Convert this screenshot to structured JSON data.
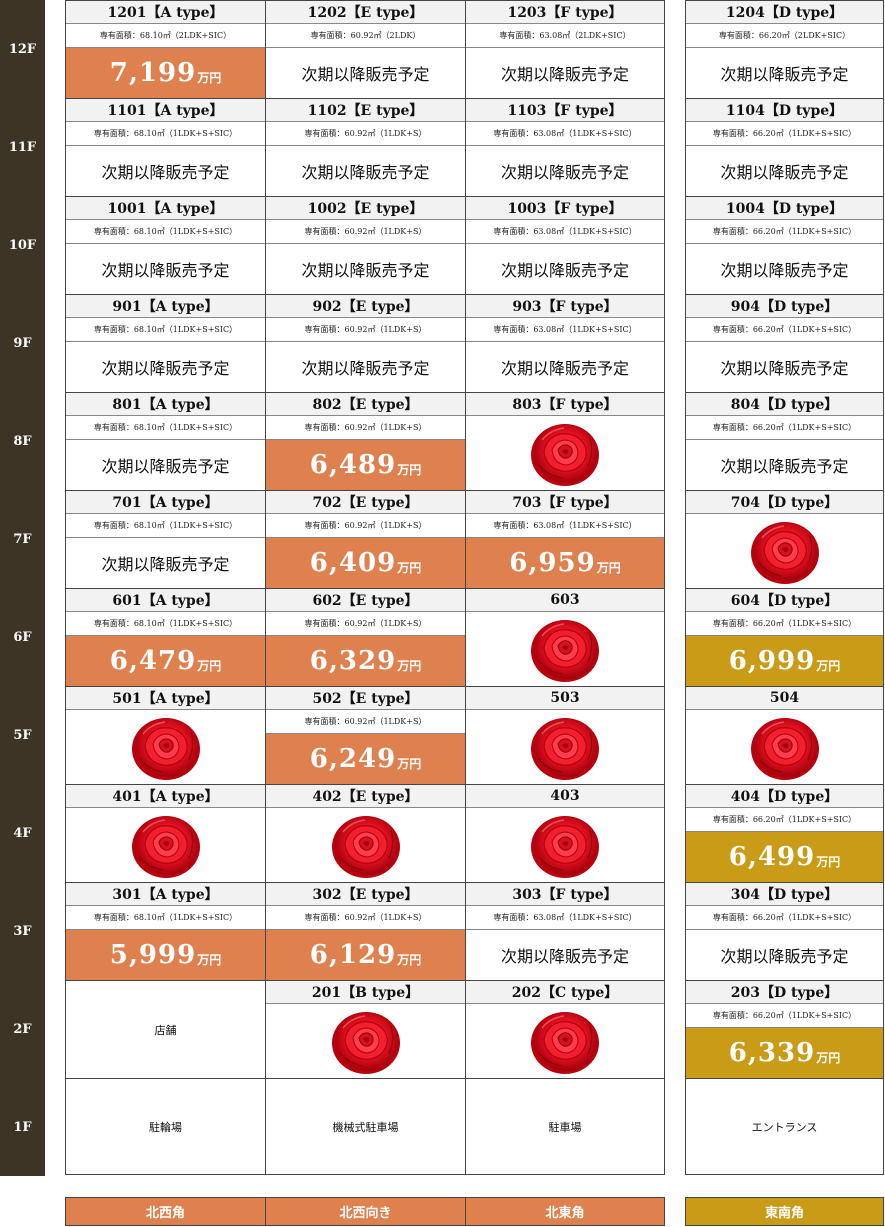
{
  "status": {
    "next": "次期以降販売予定"
  },
  "price_unit": "万円",
  "colors": {
    "orange": "#df814f",
    "gold": "#c99b16",
    "floor_bg": "#3d3426"
  },
  "floors": [
    {
      "label": "12F",
      "units": [
        {
          "header": "1201【A type】",
          "area": "専有面積：68.10㎡（2LDK+SIC）",
          "status": "price",
          "price": "7,199"
        },
        {
          "header": "1202【E type】",
          "area": "専有面積：60.92㎡（2LDK）",
          "status": "next"
        },
        {
          "header": "1203【F type】",
          "area": "専有面積：63.08㎡（2LDK+SIC）",
          "status": "next"
        },
        {
          "header": "1204【D type】",
          "area": "専有面積：66.20㎡（2LDK+SIC）",
          "status": "next"
        }
      ]
    },
    {
      "label": "11F",
      "units": [
        {
          "header": "1101【A type】",
          "area": "専有面積：68.10㎡（1LDK+S+SIC）",
          "status": "next"
        },
        {
          "header": "1102【E type】",
          "area": "専有面積：60.92㎡（1LDK+S）",
          "status": "next"
        },
        {
          "header": "1103【F type】",
          "area": "専有面積：63.08㎡（1LDK+S+SIC）",
          "status": "next"
        },
        {
          "header": "1104【D type】",
          "area": "専有面積：66.20㎡（1LDK+S+SIC）",
          "status": "next"
        }
      ]
    },
    {
      "label": "10F",
      "units": [
        {
          "header": "1001【A type】",
          "area": "専有面積：68.10㎡（1LDK+S+SIC）",
          "status": "next"
        },
        {
          "header": "1002【E type】",
          "area": "専有面積：60.92㎡（1LDK+S）",
          "status": "next"
        },
        {
          "header": "1003【F type】",
          "area": "専有面積：63.08㎡（1LDK+S+SIC）",
          "status": "next"
        },
        {
          "header": "1004【D type】",
          "area": "専有面積：66.20㎡（1LDK+S+SIC）",
          "status": "next"
        }
      ]
    },
    {
      "label": "9F",
      "units": [
        {
          "header": "901【A type】",
          "area": "専有面積：68.10㎡（1LDK+S+SIC）",
          "status": "next"
        },
        {
          "header": "902【E type】",
          "area": "専有面積：60.92㎡（1LDK+S）",
          "status": "next"
        },
        {
          "header": "903【F type】",
          "area": "専有面積：63.08㎡（1LDK+S+SIC）",
          "status": "next"
        },
        {
          "header": "904【D type】",
          "area": "専有面積：66.20㎡（1LDK+S+SIC）",
          "status": "next"
        }
      ]
    },
    {
      "label": "8F",
      "units": [
        {
          "header": "801【A type】",
          "area": "専有面積：68.10㎡（1LDK+S+SIC）",
          "status": "next"
        },
        {
          "header": "802【E type】",
          "area": "専有面積：60.92㎡（1LDK+S）",
          "status": "price",
          "price": "6,489"
        },
        {
          "header": "803【F type】",
          "status": "sold"
        },
        {
          "header": "804【D type】",
          "area": "専有面積：66.20㎡（1LDK+S+SIC）",
          "status": "next"
        }
      ]
    },
    {
      "label": "7F",
      "units": [
        {
          "header": "701【A type】",
          "area": "専有面積：68.10㎡（1LDK+S+SIC）",
          "status": "next"
        },
        {
          "header": "702【E type】",
          "area": "専有面積：60.92㎡（1LDK+S）",
          "status": "price",
          "price": "6,409"
        },
        {
          "header": "703【F type】",
          "area": "専有面積：63.08㎡（1LDK+S+SIC）",
          "status": "price",
          "price": "6,959"
        },
        {
          "header": "704【D type】",
          "status": "sold"
        }
      ]
    },
    {
      "label": "6F",
      "units": [
        {
          "header": "601【A type】",
          "area": "専有面積：68.10㎡（1LDK+S+SIC）",
          "status": "price",
          "price": "6,479"
        },
        {
          "header": "602【E type】",
          "area": "専有面積：60.92㎡（1LDK+S）",
          "status": "price",
          "price": "6,329"
        },
        {
          "header": "603",
          "status": "sold"
        },
        {
          "header": "604【D type】",
          "area": "専有面積：66.20㎡（1LDK+S+SIC）",
          "status": "price",
          "price": "6,999"
        }
      ]
    },
    {
      "label": "5F",
      "units": [
        {
          "header": "501【A type】",
          "status": "sold"
        },
        {
          "header": "502【E type】",
          "area": "専有面積：60.92㎡（1LDK+S）",
          "status": "price",
          "price": "6,249"
        },
        {
          "header": "503",
          "status": "sold"
        },
        {
          "header": "504",
          "status": "sold"
        }
      ]
    },
    {
      "label": "4F",
      "units": [
        {
          "header": "401【A type】",
          "status": "sold"
        },
        {
          "header": "402【E type】",
          "status": "sold"
        },
        {
          "header": "403",
          "status": "sold"
        },
        {
          "header": "404【D type】",
          "area": "専有面積：66.20㎡（1LDK+S+SIC）",
          "status": "price",
          "price": "6,499"
        }
      ]
    },
    {
      "label": "3F",
      "units": [
        {
          "header": "301【A type】",
          "area": "専有面積：68.10㎡（1LDK+S+SIC）",
          "status": "price",
          "price": "5,999"
        },
        {
          "header": "302【E type】",
          "area": "専有面積：60.92㎡（1LDK+S）",
          "status": "price",
          "price": "6,129"
        },
        {
          "header": "303【F type】",
          "area": "専有面積：63.08㎡（1LDK+S+SIC）",
          "status": "next"
        },
        {
          "header": "304【D type】",
          "area": "専有面積：66.20㎡（1LDK+S+SIC）",
          "status": "next"
        }
      ]
    },
    {
      "label": "2F",
      "units": [
        {
          "status": "text",
          "text": "店舗"
        },
        {
          "header": "201【B type】",
          "status": "sold"
        },
        {
          "header": "202【C type】",
          "status": "sold"
        },
        {
          "header": "203【D type】",
          "area": "専有面積：66.20㎡（1LDK+S+SIC）",
          "status": "price",
          "price": "6,339"
        }
      ]
    },
    {
      "label": "1F",
      "units": [
        {
          "status": "text",
          "text": "駐輪場"
        },
        {
          "status": "text",
          "text": "機械式駐車場"
        },
        {
          "status": "text",
          "text": "駐車場"
        },
        {
          "status": "text",
          "text": "エントランス"
        }
      ]
    }
  ],
  "directions": [
    "北西角",
    "北西向き",
    "北東角",
    "東南角"
  ]
}
